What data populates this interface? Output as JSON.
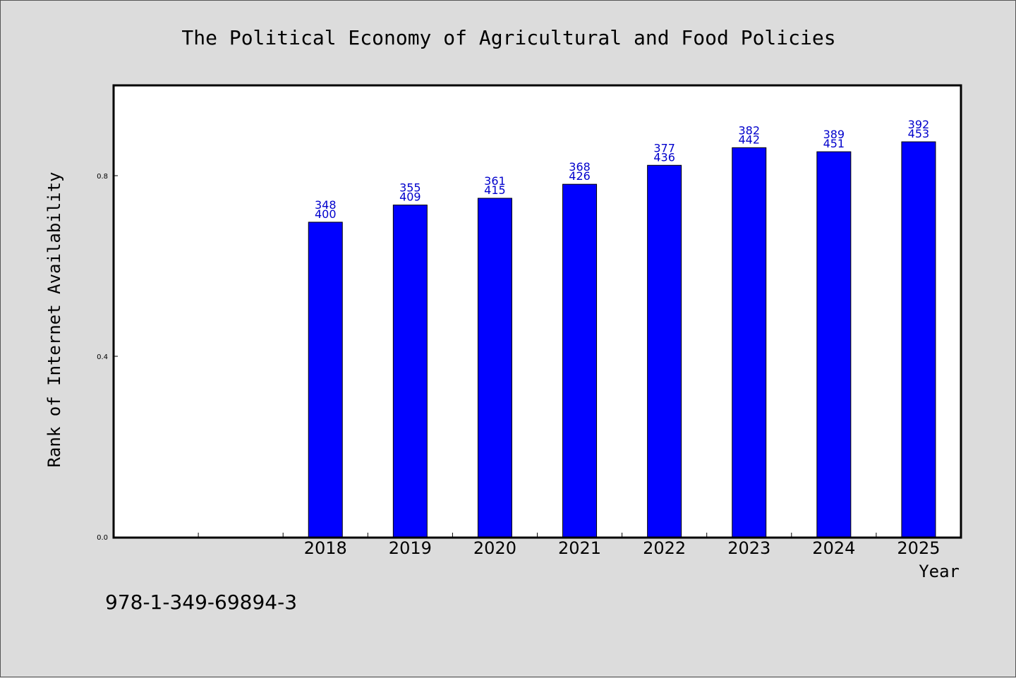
{
  "chart_data": {
    "type": "bar",
    "title": "The Political Economy of Agricultural and Food Policies",
    "xlabel": "Year",
    "ylabel": "Rank of Internet Availability",
    "categories": [
      "",
      "",
      "2018",
      "2019",
      "2020",
      "2021",
      "2022",
      "2023",
      "2024",
      "2025"
    ],
    "values": [
      null,
      null,
      0.697,
      0.735,
      0.75,
      0.781,
      0.823,
      0.862,
      0.853,
      0.875
    ],
    "data_labels": [
      [
        "",
        ""
      ],
      [
        "",
        ""
      ],
      [
        "348",
        "400"
      ],
      [
        "355",
        "409"
      ],
      [
        "361",
        "415"
      ],
      [
        "368",
        "426"
      ],
      [
        "377",
        "436"
      ],
      [
        "382",
        "442"
      ],
      [
        "389",
        "451"
      ],
      [
        "392",
        "453"
      ]
    ],
    "yticks": [
      "0.0",
      "0.4",
      "0.8"
    ],
    "ytick_values": [
      0.0,
      0.4,
      0.8
    ],
    "ylim": [
      0,
      1.0
    ],
    "grid": false,
    "bar_color": "#0000ff",
    "label_color": "#0000cc"
  },
  "footer": {
    "isbn": "978-1-349-69894-3"
  }
}
